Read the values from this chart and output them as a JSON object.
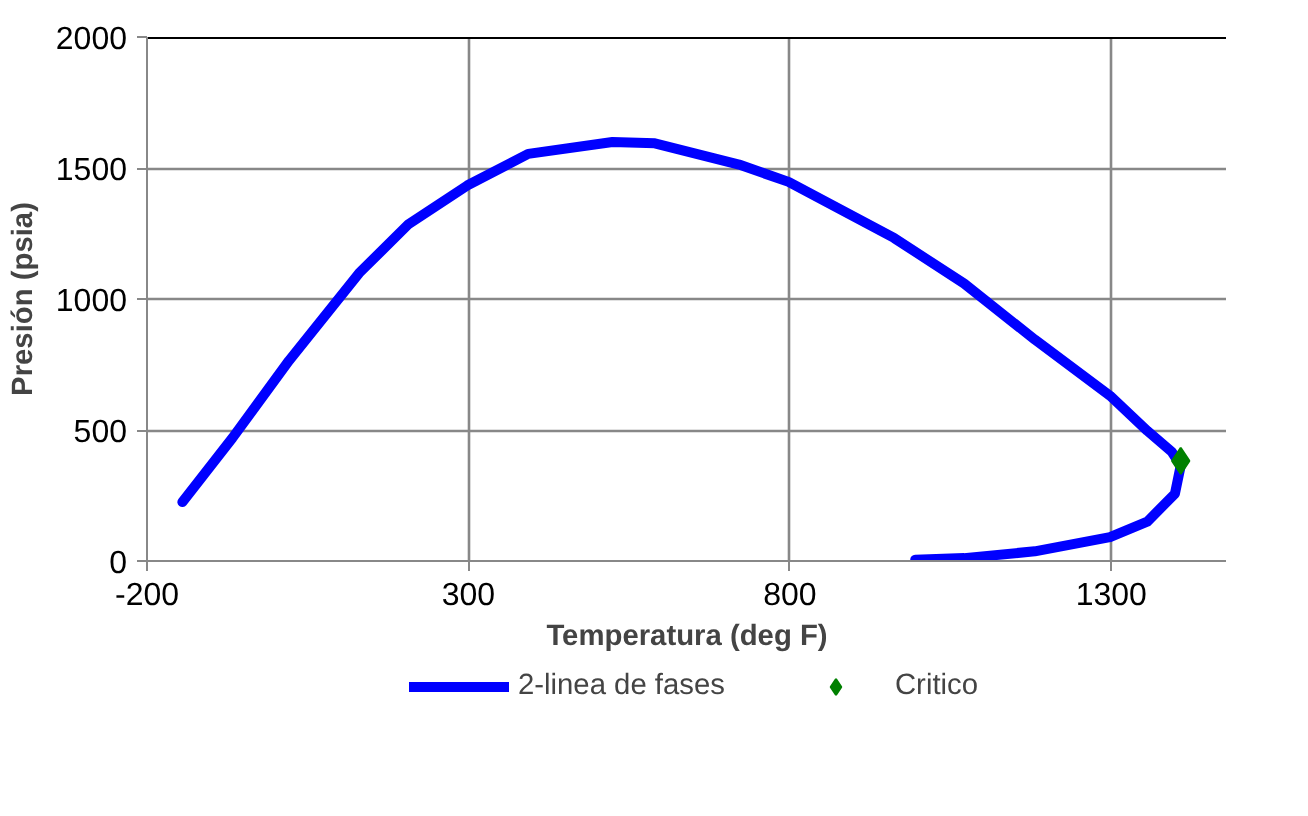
{
  "chart_data": {
    "type": "line",
    "xlabel": "Temperatura (deg F)",
    "ylabel": "Presión (psia)",
    "xlim": [
      -200,
      1480
    ],
    "xticks": [
      -200,
      300,
      800,
      1300
    ],
    "ylim": [
      0,
      2000
    ],
    "yticks": [
      0,
      500,
      1000,
      1500,
      2000
    ],
    "grid": true,
    "legend": "bottom",
    "series": [
      {
        "name": "2-linea de fases",
        "color": "#0000ff",
        "marker": "none",
        "line_style": "solid",
        "x": [
          -145,
          -67,
          21,
          130,
          207,
          298,
          393,
          524,
          590,
          721,
          798,
          962,
          1071,
          1181,
          1298,
          1356,
          1394,
          1408,
          1399,
          1356,
          1298,
          1181,
          1071,
          995
        ],
        "values": [
          225,
          470,
          765,
          1099,
          1286,
          1433,
          1554,
          1599,
          1594,
          1513,
          1447,
          1233,
          1059,
          845,
          631,
          497,
          417,
          364,
          257,
          150,
          91,
          37,
          11,
          5
        ]
      },
      {
        "name": "Critico",
        "type": "scatter",
        "color": "#008000",
        "marker": "diamond",
        "x": [
          1408
        ],
        "values": [
          382
        ]
      }
    ]
  }
}
